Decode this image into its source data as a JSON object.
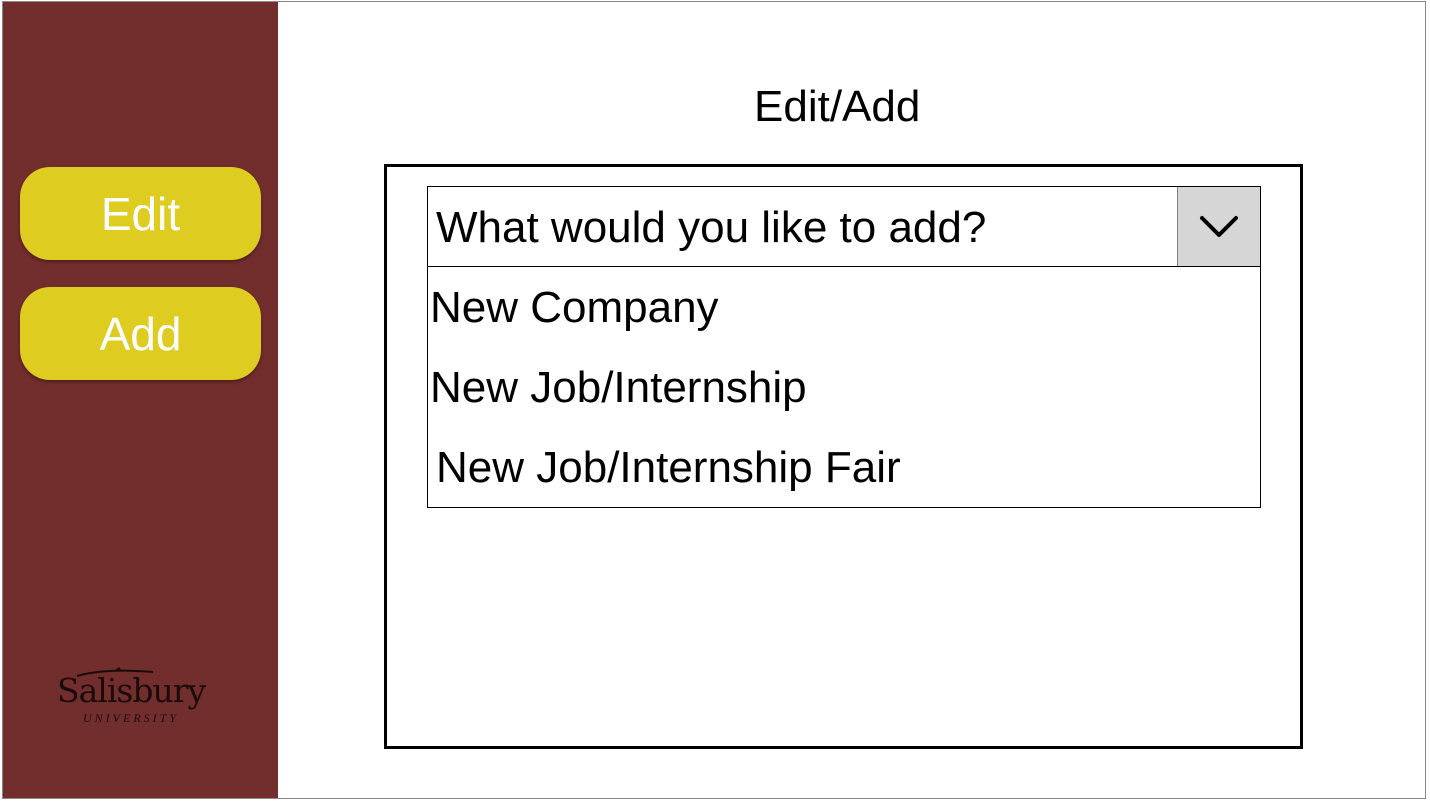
{
  "sidebar": {
    "edit_label": "Edit",
    "add_label": "Add",
    "logo": {
      "name": "Salisbury",
      "subtitle": "UNIVERSITY"
    }
  },
  "main": {
    "title": "Edit/Add",
    "dropdown": {
      "selected": "What would you like to add?",
      "icon": "chevron-down-icon",
      "options": [
        "New Company",
        "New Job/Internship",
        "New Job/Internship Fair"
      ]
    }
  },
  "colors": {
    "sidebar_bg": "#722d2d",
    "button_bg": "#dfcc20",
    "button_text": "#ffffff",
    "dropdown_arrow_bg": "#d6d6d6"
  }
}
